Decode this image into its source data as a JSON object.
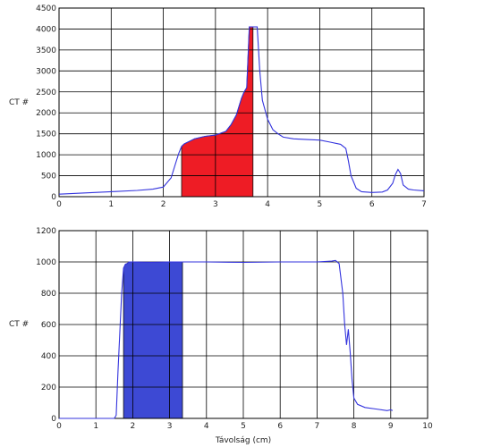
{
  "chart_data": [
    {
      "type": "line",
      "ylabel": "CT #",
      "xlabel": "",
      "xlim": [
        0,
        7
      ],
      "ylim": [
        0,
        4500
      ],
      "xticks": [
        0,
        1,
        2,
        3,
        4,
        5,
        6,
        7
      ],
      "yticks": [
        0,
        500,
        1000,
        1500,
        2000,
        2500,
        3000,
        3500,
        4000,
        4500
      ],
      "grid": true,
      "series": [
        {
          "color": "#3333dd",
          "x": [
            0,
            0.5,
            1.0,
            1.5,
            1.8,
            2.0,
            2.15,
            2.25,
            2.3,
            2.35,
            2.4,
            2.5,
            2.6,
            2.8,
            3.0,
            3.2,
            3.3,
            3.4,
            3.5,
            3.55,
            3.6,
            3.65,
            3.72,
            3.8,
            3.85,
            3.9,
            4.0,
            4.1,
            4.2,
            4.3,
            4.5,
            4.8,
            5.0,
            5.2,
            5.4,
            5.5,
            5.55,
            5.6,
            5.7,
            5.8,
            6.0,
            6.2,
            6.3,
            6.4,
            6.45,
            6.5,
            6.55,
            6.6,
            6.7,
            6.8,
            7.0
          ],
          "y": [
            60,
            90,
            120,
            150,
            180,
            230,
            450,
            850,
            1050,
            1200,
            1260,
            1320,
            1380,
            1440,
            1470,
            1560,
            1720,
            1950,
            2350,
            2500,
            2600,
            4050,
            4050,
            4050,
            3000,
            2300,
            1850,
            1600,
            1500,
            1420,
            1380,
            1360,
            1350,
            1300,
            1250,
            1150,
            850,
            500,
            200,
            120,
            100,
            110,
            160,
            320,
            520,
            650,
            550,
            280,
            180,
            160,
            140
          ]
        }
      ],
      "highlight": {
        "from": 2.35,
        "to": 3.72,
        "color": "#ee1c25"
      }
    },
    {
      "type": "line",
      "ylabel": "CT #",
      "xlabel": "Távolság (cm)",
      "xlim": [
        0,
        10
      ],
      "ylim": [
        0,
        1200
      ],
      "xticks": [
        0,
        1,
        2,
        3,
        4,
        5,
        6,
        7,
        8,
        9,
        10
      ],
      "yticks": [
        0,
        200,
        400,
        600,
        800,
        1000,
        1200
      ],
      "grid": true,
      "series": [
        {
          "color": "#3333dd",
          "x": [
            0,
            0.5,
            1.0,
            1.5,
            1.55,
            1.6,
            1.7,
            1.75,
            1.8,
            1.85,
            1.9,
            2.0,
            2.5,
            3.0,
            4.0,
            5.0,
            6.0,
            7.0,
            7.4,
            7.5,
            7.6,
            7.7,
            7.75,
            7.8,
            7.85,
            7.9,
            7.95,
            8.0,
            8.1,
            8.3,
            8.6,
            8.9,
            9.0,
            9.05
          ],
          "y": [
            0,
            0,
            0,
            0,
            20,
            300,
            800,
            960,
            985,
            990,
            1000,
            1000,
            998,
            1000,
            1000,
            997,
            1000,
            1000,
            1005,
            1010,
            990,
            800,
            600,
            470,
            570,
            420,
            250,
            130,
            90,
            70,
            60,
            50,
            55,
            50
          ]
        }
      ],
      "highlight": {
        "from": 1.75,
        "to": 3.35,
        "color": "#3d49d4"
      }
    }
  ]
}
